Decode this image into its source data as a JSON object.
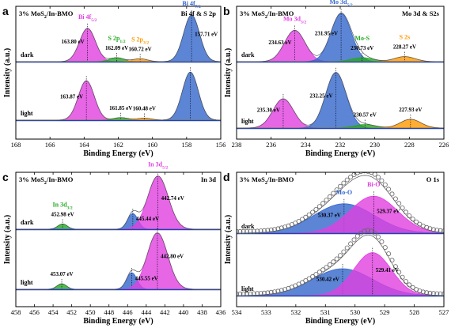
{
  "chart_data": [
    {
      "type": "area",
      "panel_letter": "a",
      "sample": "3% MoS2/In-BMO",
      "title": "Bi 4f & S 2p",
      "xlabel": "Binding Energy (eV)",
      "ylabel": "Intensity (a.u.)",
      "xlim": [
        168,
        156
      ],
      "xticks": [
        "168",
        "166",
        "164",
        "162",
        "160",
        "158",
        "156"
      ],
      "rows": [
        {
          "label": "dark",
          "components": [
            {
              "name": "Bi 4f5/2",
              "color": "#e040e0",
              "center": 163.8,
              "fwhm": 1.1,
              "height": 0.68,
              "label": "163.80 eV"
            },
            {
              "name": "Bi 4f7/2",
              "color": "#3366cc",
              "center": 157.71,
              "fwhm": 1.1,
              "height": 0.95,
              "label": "157.71 eV"
            },
            {
              "name": "S 2p1/2",
              "color": "#22aa22",
              "center": 162.09,
              "fwhm": 1.0,
              "height": 0.08,
              "label": "162.09 eV"
            },
            {
              "name": "S 2p3/2",
              "color": "#ff9900",
              "center": 160.72,
              "fwhm": 1.0,
              "height": 0.06,
              "label": "160.72 eV"
            }
          ]
        },
        {
          "label": "light",
          "components": [
            {
              "name": "Bi 4f5/2",
              "color": "#e040e0",
              "center": 163.87,
              "fwhm": 1.1,
              "height": 0.78,
              "label": "163.87 eV"
            },
            {
              "name": "Bi 4f7/2",
              "color": "#3366cc",
              "center": 157.78,
              "fwhm": 1.1,
              "height": 0.95,
              "label": ""
            },
            {
              "name": "S 2p1/2",
              "color": "#22aa22",
              "center": 161.85,
              "fwhm": 1.0,
              "height": 0.05,
              "label": "161.85 eV"
            },
            {
              "name": "S 2p3/2",
              "color": "#ff9900",
              "center": 160.48,
              "fwhm": 1.0,
              "height": 0.04,
              "label": "160.48 eV"
            }
          ]
        }
      ]
    },
    {
      "type": "area",
      "panel_letter": "b",
      "sample": "3% MoS2/In-BMO",
      "title": "Mo 3d & S2s",
      "xlabel": "Binding Energy (eV)",
      "ylabel": "Intensity (a.u.)",
      "xlim": [
        238,
        226
      ],
      "xticks": [
        "238",
        "236",
        "234",
        "232",
        "230",
        "228",
        "226"
      ],
      "rows": [
        {
          "label": "dark",
          "components": [
            {
              "name": "Mo 3d3/2",
              "color": "#e040e0",
              "center": 234.63,
              "fwhm": 1.4,
              "height": 0.62,
              "label": "234.63 eV"
            },
            {
              "name": "Mo 3d5/2",
              "color": "#3366cc",
              "center": 231.95,
              "fwhm": 1.4,
              "height": 0.95,
              "label": "231.95 eV"
            },
            {
              "name": "Mo-S",
              "color": "#22aa22",
              "center": 230.73,
              "fwhm": 1.5,
              "height": 0.08,
              "label": "230.73 eV"
            },
            {
              "name": "S 2s",
              "color": "#ff9900",
              "center": 228.27,
              "fwhm": 1.4,
              "height": 0.1,
              "label": "228.27 eV"
            }
          ]
        },
        {
          "label": "light",
          "components": [
            {
              "name": "Mo 3d3/2",
              "color": "#e040e0",
              "center": 235.3,
              "fwhm": 1.4,
              "height": 0.5,
              "label": "235.30 eV"
            },
            {
              "name": "Mo 3d5/2",
              "color": "#3366cc",
              "center": 232.25,
              "fwhm": 1.4,
              "height": 0.95,
              "label": "232.25 eV"
            },
            {
              "name": "Mo-S",
              "color": "#22aa22",
              "center": 230.57,
              "fwhm": 1.5,
              "height": 0.06,
              "label": "230.57 eV"
            },
            {
              "name": "S 2s",
              "color": "#ff9900",
              "center": 227.93,
              "fwhm": 1.4,
              "height": 0.15,
              "label": "227.93 eV"
            }
          ]
        }
      ]
    },
    {
      "type": "area",
      "panel_letter": "c",
      "sample": "3% MoS2/In-BMO",
      "title": "In 3d",
      "xlabel": "Binding Energy (eV)",
      "ylabel": "Intensity (a.u.)",
      "xlim": [
        458,
        436
      ],
      "xticks": [
        "458",
        "456",
        "454",
        "452",
        "450",
        "448",
        "446",
        "444",
        "442",
        "440",
        "438",
        "436"
      ],
      "rows": [
        {
          "label": "dark",
          "components": [
            {
              "name": "In 3d3/2",
              "color": "#22aa22",
              "center": 452.98,
              "fwhm": 1.2,
              "height": 0.1,
              "label": "452.98 eV"
            },
            {
              "name": "",
              "color": "#3366cc",
              "center": 445.44,
              "fwhm": 1.3,
              "height": 0.3,
              "label": "445.44 eV"
            },
            {
              "name": "In 3d5/2",
              "color": "#e040e0",
              "center": 442.74,
              "fwhm": 2.6,
              "height": 1.02,
              "label": "442.74 eV"
            }
          ]
        },
        {
          "label": "light",
          "components": [
            {
              "name": "",
              "color": "#22aa22",
              "center": 453.07,
              "fwhm": 1.2,
              "height": 0.1,
              "label": "453.07 eV"
            },
            {
              "name": "",
              "color": "#3366cc",
              "center": 445.55,
              "fwhm": 1.3,
              "height": 0.3,
              "label": "445.55 eV"
            },
            {
              "name": "",
              "color": "#e040e0",
              "center": 442.8,
              "fwhm": 2.6,
              "height": 1.02,
              "label": "442.80 eV"
            }
          ]
        }
      ]
    },
    {
      "type": "area",
      "panel_letter": "d",
      "sample": "3% MoS2/In-BMO",
      "title": "O 1s",
      "xlabel": "Binding Energy (eV)",
      "ylabel": "Intensity (a.u.)",
      "xlim": [
        534,
        527
      ],
      "xticks": [
        "534",
        "533",
        "532",
        "531",
        "530",
        "529",
        "528",
        "527"
      ],
      "rows": [
        {
          "label": "dark",
          "components": [
            {
              "name": "Mo-O",
              "color": "#3366cc",
              "center": 530.37,
              "fwhm": 2.4,
              "height": 0.62,
              "label": "530.37 eV"
            },
            {
              "name": "Bi-O",
              "color": "#e040e0",
              "center": 529.37,
              "fwhm": 1.9,
              "height": 0.78,
              "label": "529.37 eV"
            }
          ]
        },
        {
          "label": "light",
          "components": [
            {
              "name": "",
              "color": "#3366cc",
              "center": 530.42,
              "fwhm": 2.4,
              "height": 0.5,
              "label": "530.42 eV"
            },
            {
              "name": "",
              "color": "#e040e0",
              "center": 529.41,
              "fwhm": 1.5,
              "height": 0.8,
              "label": "529.41 eV"
            }
          ]
        }
      ]
    }
  ]
}
